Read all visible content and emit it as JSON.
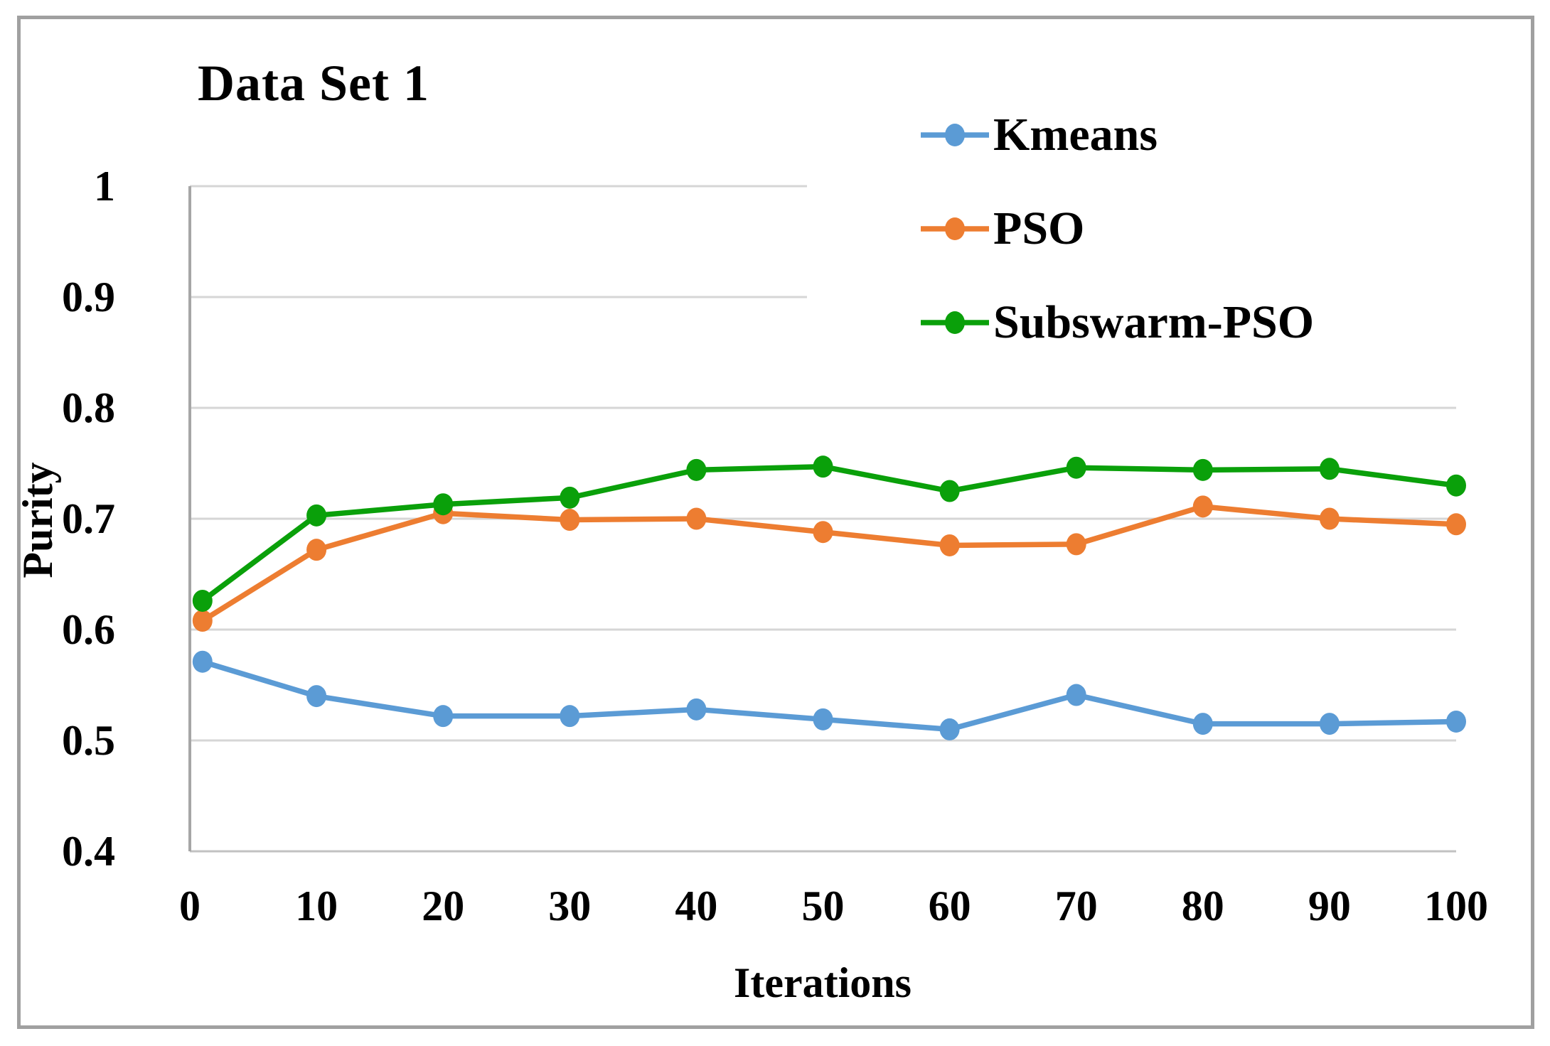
{
  "figure": {
    "background": "#ffffff",
    "border_color": "#a0a0a0",
    "gridline_color": "#d6d6d6",
    "baseline_color": "#c2c2c2",
    "axis_line_color": "#a6a6a6"
  },
  "chart_data": {
    "type": "line",
    "title": "Data Set 1",
    "xlabel": "Iterations",
    "ylabel": "Purity",
    "xlim": [
      0,
      100
    ],
    "ylim": [
      0.4,
      1.0
    ],
    "x_ticks": [
      0,
      10,
      20,
      30,
      40,
      50,
      60,
      70,
      80,
      90,
      100
    ],
    "y_ticks": [
      1,
      0.9,
      0.8,
      0.7,
      0.6,
      0.5,
      0.4
    ],
    "y_tick_labels": [
      "1",
      "0.9",
      "0.8",
      "0.7",
      "0.6",
      "0.5",
      "0.4"
    ],
    "grid": "horizontal-only",
    "legend_position": "top-right-inside",
    "x": [
      1,
      10,
      20,
      30,
      40,
      50,
      60,
      70,
      80,
      90,
      100
    ],
    "series": [
      {
        "name": "Kmeans",
        "color": "#5B9BD5",
        "values": [
          0.571,
          0.54,
          0.522,
          0.522,
          0.528,
          0.519,
          0.51,
          0.541,
          0.515,
          0.515,
          0.517
        ]
      },
      {
        "name": "PSO",
        "color": "#ED7D31",
        "values": [
          0.608,
          0.672,
          0.705,
          0.699,
          0.7,
          0.688,
          0.676,
          0.677,
          0.711,
          0.7,
          0.695
        ]
      },
      {
        "name": "Subswarm-PSO",
        "color": "#0AA00A",
        "values": [
          0.626,
          0.703,
          0.713,
          0.719,
          0.744,
          0.747,
          0.725,
          0.746,
          0.744,
          0.745,
          0.73
        ]
      }
    ]
  }
}
